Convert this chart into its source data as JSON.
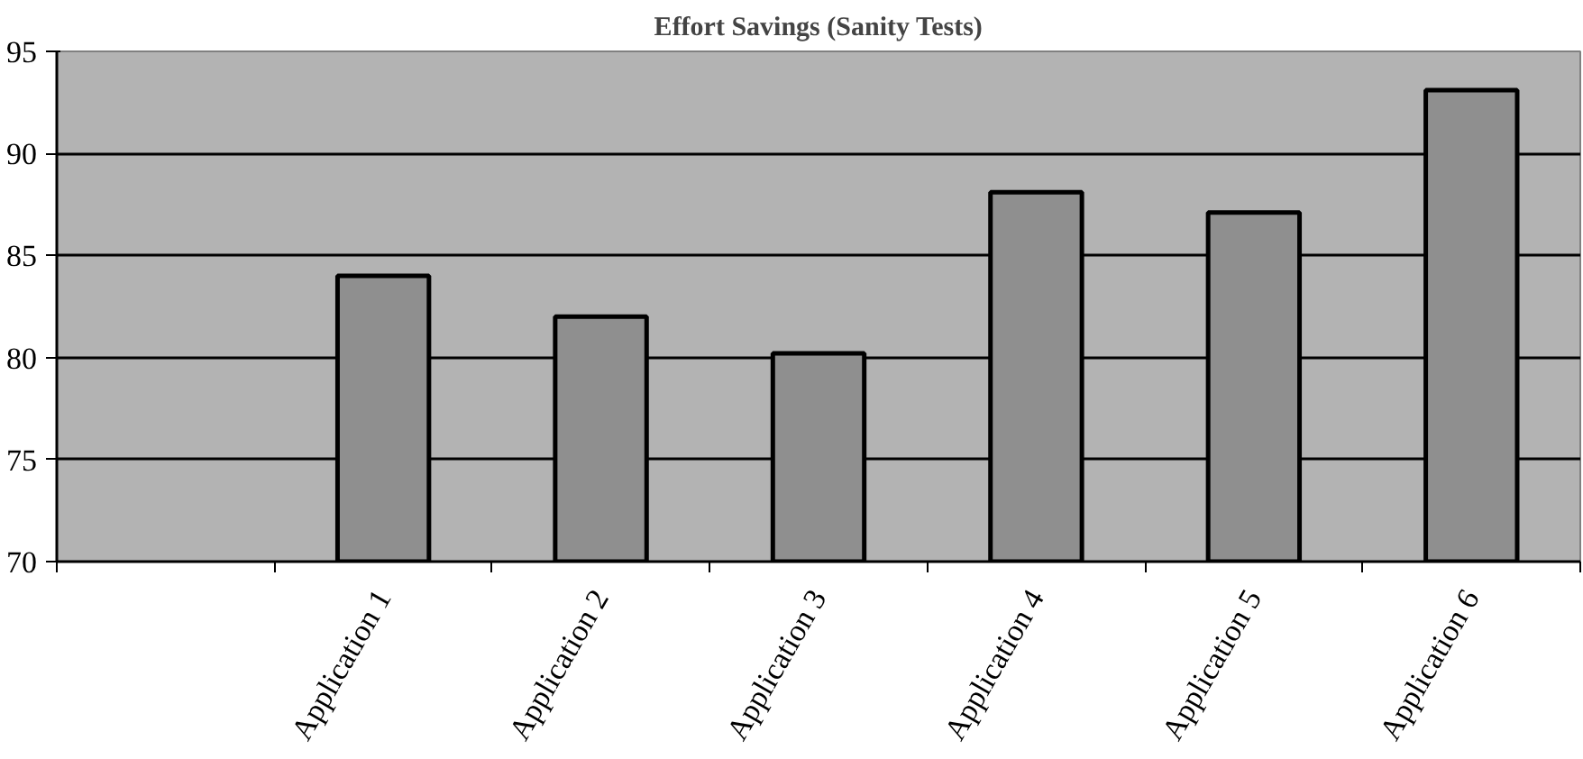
{
  "chart_data": {
    "type": "bar",
    "title": "Effort Savings (Sanity Tests)",
    "categories": [
      null,
      "Application 1",
      "Application 2",
      "Application 3",
      "Application 4",
      "Application 5",
      "Application 6"
    ],
    "values": [
      null,
      84,
      82,
      80.2,
      88.1,
      87.1,
      93.1
    ],
    "color": "#8f8f8f",
    "ylim": [
      70,
      95
    ],
    "yticks": [
      70,
      75,
      80,
      85,
      90,
      95
    ],
    "grid": "y"
  }
}
